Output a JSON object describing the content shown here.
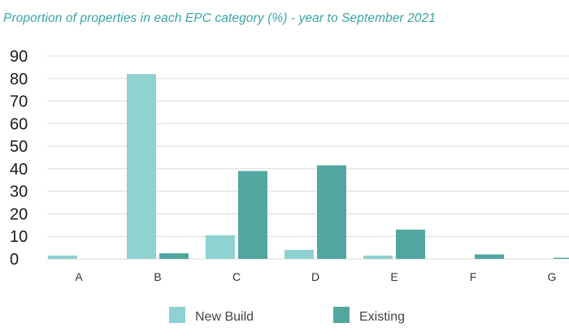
{
  "chart_data": {
    "type": "bar",
    "title": "Proportion of properties in each EPC category (%) - year to September 2021",
    "categories": [
      "A",
      "B",
      "C",
      "D",
      "E",
      "F",
      "G"
    ],
    "series": [
      {
        "name": "New Build",
        "color": "#8fd0d1",
        "values": [
          1.5,
          82,
          10.5,
          4,
          1.5,
          0,
          0
        ]
      },
      {
        "name": "Existing",
        "color": "#52a6a0",
        "values": [
          0,
          2.5,
          39,
          41.5,
          13,
          2,
          0.5
        ]
      }
    ],
    "yticks": [
      0,
      10,
      20,
      30,
      40,
      50,
      60,
      70,
      80,
      90
    ],
    "ylim": [
      0,
      90
    ],
    "grid": true,
    "legend_position": "bottom"
  }
}
